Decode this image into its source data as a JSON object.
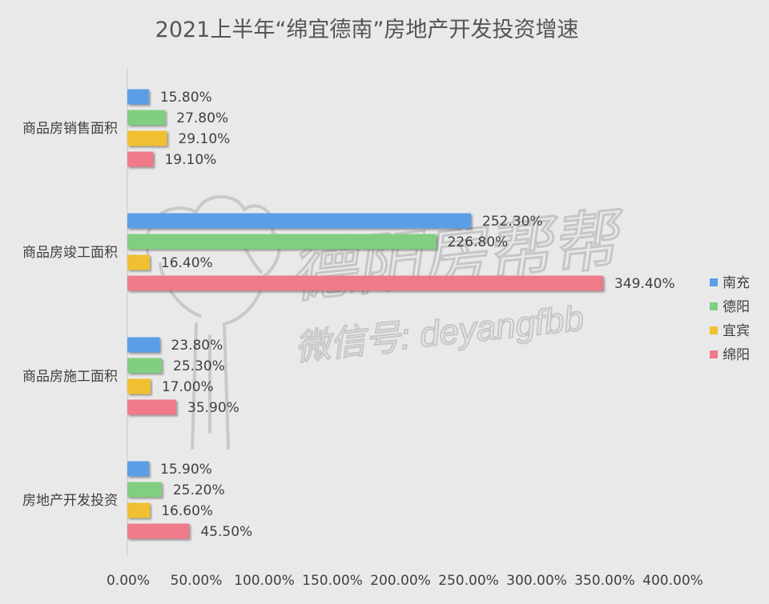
{
  "chart_data": {
    "type": "bar",
    "orientation": "horizontal",
    "title": "2021上半年“绵宜德南”房地产开发投资增速",
    "categories": [
      "商品房销售面积",
      "商品房竣工面积",
      "商品房施工面积",
      "房地产开发投资"
    ],
    "series": [
      {
        "name": "南充",
        "color": "#5a9ee6",
        "values": [
          15.8,
          252.3,
          23.8,
          15.9
        ],
        "labels": [
          "15.80%",
          "252.30%",
          "23.80%",
          "15.90%"
        ]
      },
      {
        "name": "德阳",
        "color": "#80cf80",
        "values": [
          27.8,
          226.8,
          25.3,
          25.2
        ],
        "labels": [
          "27.80%",
          "226.80%",
          "25.30%",
          "25.20%"
        ]
      },
      {
        "name": "宜宾",
        "color": "#f0c030",
        "values": [
          29.1,
          16.4,
          17.0,
          16.6
        ],
        "labels": [
          "29.10%",
          "16.40%",
          "17.00%",
          "16.60%"
        ]
      },
      {
        "name": "绵阳",
        "color": "#ef7a8a",
        "values": [
          19.1,
          349.4,
          35.9,
          45.5
        ],
        "labels": [
          "19.10%",
          "349.40%",
          "35.90%",
          "45.50%"
        ]
      }
    ],
    "xlim": [
      0,
      400
    ],
    "xticks": [
      0,
      50,
      100,
      150,
      200,
      250,
      300,
      350,
      400
    ],
    "xtick_labels": [
      "0.00%",
      "50.00%",
      "100.00%",
      "150.00%",
      "200.00%",
      "250.00%",
      "300.00%",
      "350.00%",
      "400.00%"
    ],
    "grid": false,
    "legend_position": "right"
  },
  "watermark": {
    "logo_text": "德阳房帮帮",
    "wechat_text": "微信号: deyangfbb"
  }
}
